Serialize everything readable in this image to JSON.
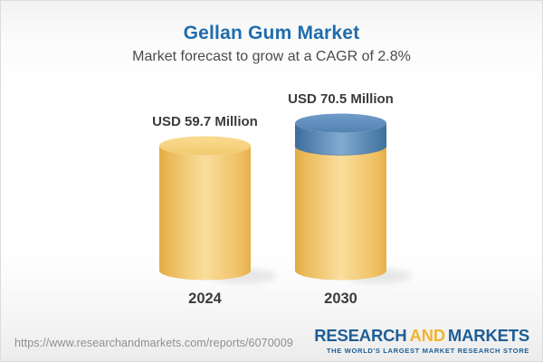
{
  "header": {
    "title": "Gellan Gum Market",
    "subtitle": "Market forecast to grow at a CAGR of 2.8%"
  },
  "chart_data": {
    "type": "bar",
    "variant": "3d-cylinder",
    "categories": [
      "2024",
      "2030"
    ],
    "values": [
      59.7,
      70.5
    ],
    "value_labels": [
      "USD 59.7 Million",
      "USD 70.5 Million"
    ],
    "unit": "USD Million",
    "cagr_percent": 2.8,
    "title": "Gellan Gum Market",
    "xlabel": "",
    "ylabel": "",
    "legend": false,
    "grid": false,
    "note": "2030 cylinder shows blue growth cap above the 2024 base level",
    "colors": {
      "base_gold": "#F2C464",
      "growth_blue": "#5586B6"
    }
  },
  "footer": {
    "url": "https://www.researchandmarkets.com/reports/6070009",
    "logo": {
      "part1": "RESEARCH",
      "part2": "AND",
      "part3": "MARKETS",
      "tagline": "THE WORLD'S LARGEST MARKET RESEARCH STORE"
    }
  },
  "colors": {
    "title_blue": "#1F6CAD",
    "logo_blue": "#1D5E96",
    "logo_gold": "#F0B431",
    "text_dark": "#3B3B3B"
  }
}
